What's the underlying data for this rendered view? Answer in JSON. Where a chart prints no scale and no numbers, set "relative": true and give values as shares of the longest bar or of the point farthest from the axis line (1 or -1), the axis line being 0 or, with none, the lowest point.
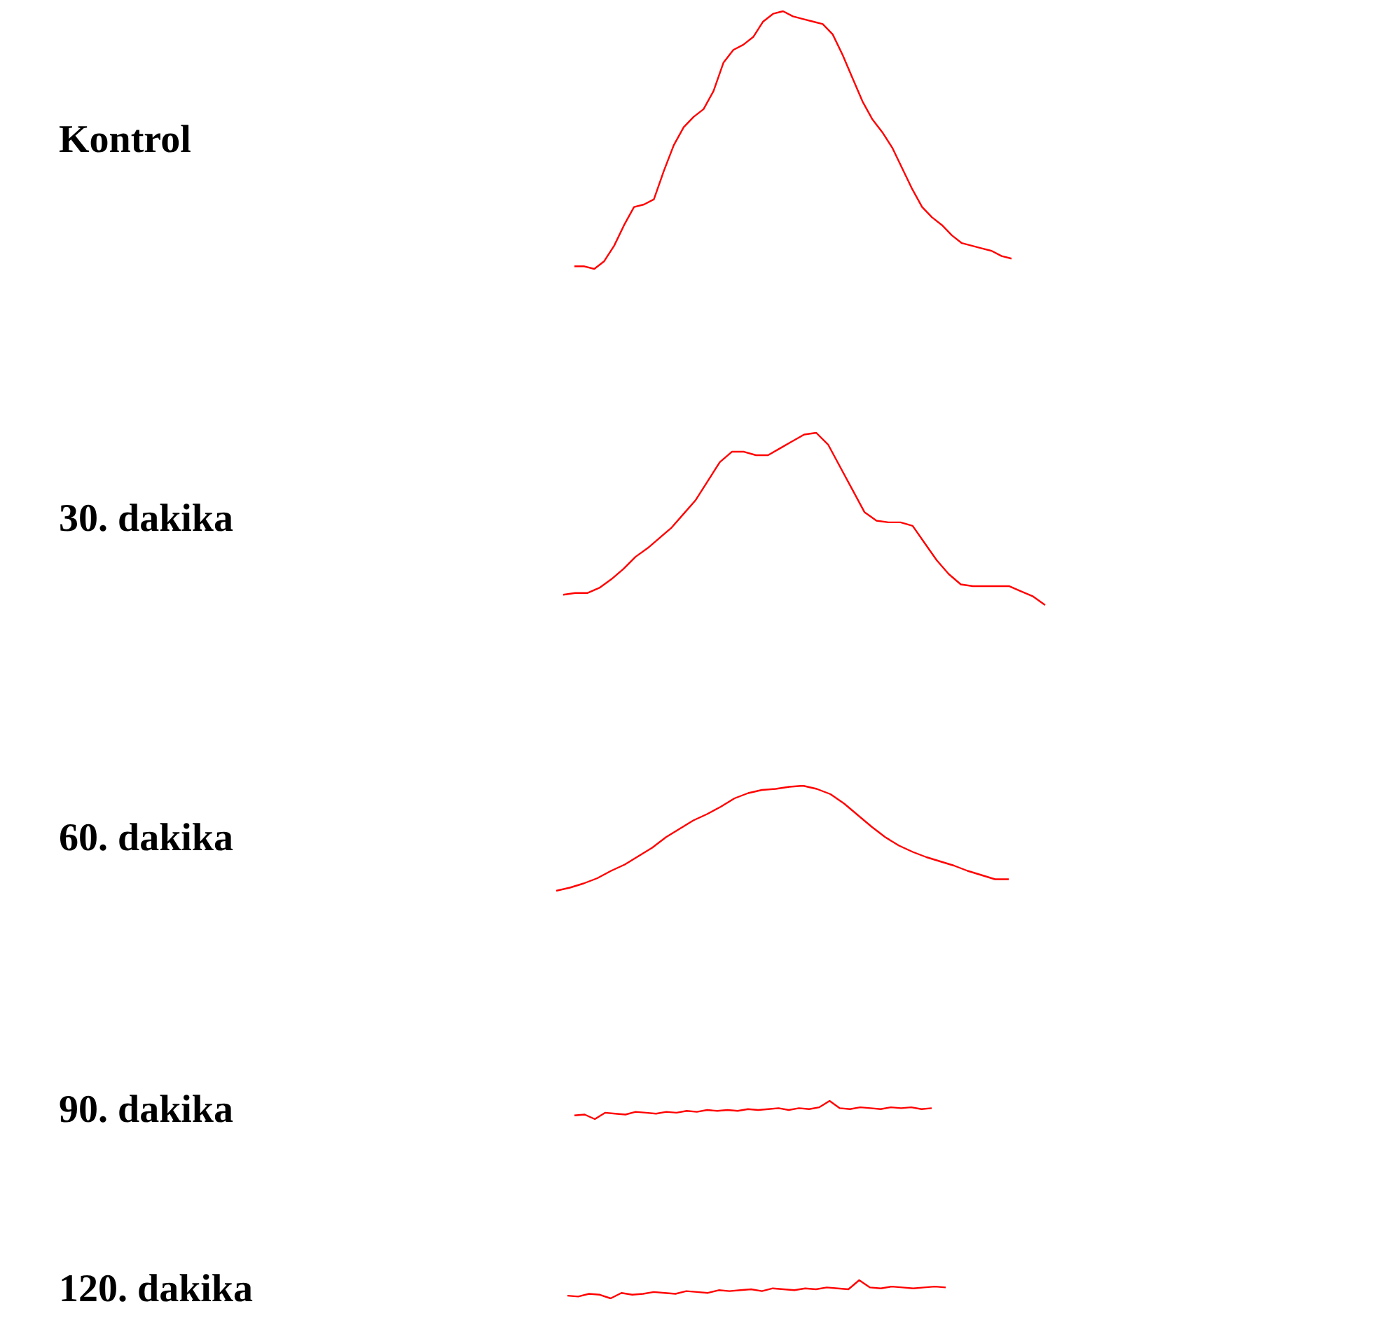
{
  "chart_data": [
    {
      "type": "line",
      "ylabel": "Kontrol",
      "relative": true,
      "categories": [
        null,
        null,
        null,
        null,
        null,
        null,
        null,
        null,
        null,
        null,
        null,
        null,
        null,
        null,
        null,
        null,
        null,
        null,
        null,
        null,
        null,
        null,
        null,
        null,
        null,
        null,
        null,
        null,
        null,
        null,
        null,
        null,
        null,
        null,
        null,
        null,
        null,
        null,
        null,
        null,
        null,
        null,
        null,
        null,
        null
      ],
      "series": [
        {
          "color": "#ff0000",
          "values": [
            0.01,
            0.01,
            0,
            0.03,
            0.09,
            0.17,
            0.24,
            0.25,
            0.27,
            0.38,
            0.48,
            0.55,
            0.59,
            0.62,
            0.69,
            0.8,
            0.85,
            0.87,
            0.9,
            0.96,
            0.99,
            1,
            0.98,
            0.97,
            0.96,
            0.95,
            0.91,
            0.83,
            0.74,
            0.65,
            0.58,
            0.53,
            0.47,
            0.39,
            0.31,
            0.24,
            0.2,
            0.17,
            0.13,
            0.1,
            0.09,
            0.08,
            0.07,
            0.05,
            0.04
          ]
        }
      ]
    },
    {
      "type": "line",
      "ylabel": "30. dakika",
      "relative": true,
      "categories": [
        null,
        null,
        null,
        null,
        null,
        null,
        null,
        null,
        null,
        null,
        null,
        null,
        null,
        null,
        null,
        null,
        null,
        null,
        null,
        null,
        null,
        null,
        null,
        null,
        null,
        null,
        null,
        null,
        null,
        null,
        null,
        null,
        null,
        null,
        null,
        null,
        null,
        null,
        null,
        null,
        null
      ],
      "series": [
        {
          "color": "#ff0000",
          "values": [
            0.06,
            0.07,
            0.07,
            0.1,
            0.15,
            0.21,
            0.28,
            0.33,
            0.39,
            0.45,
            0.53,
            0.61,
            0.72,
            0.83,
            0.89,
            0.89,
            0.87,
            0.87,
            0.91,
            0.95,
            0.99,
            1,
            0.93,
            0.8,
            0.67,
            0.54,
            0.49,
            0.48,
            0.48,
            0.46,
            0.36,
            0.26,
            0.18,
            0.12,
            0.11,
            0.11,
            0.11,
            0.11,
            0.08,
            0.05,
            0
          ]
        }
      ]
    },
    {
      "type": "line",
      "ylabel": "60. dakika",
      "relative": true,
      "categories": [
        null,
        null,
        null,
        null,
        null,
        null,
        null,
        null,
        null,
        null,
        null,
        null,
        null,
        null,
        null,
        null,
        null,
        null,
        null,
        null,
        null,
        null,
        null,
        null,
        null,
        null,
        null,
        null,
        null,
        null,
        null,
        null,
        null,
        null
      ],
      "series": [
        {
          "color": "#ff0000",
          "values": [
            0,
            0.03,
            0.07,
            0.12,
            0.19,
            0.25,
            0.33,
            0.41,
            0.51,
            0.59,
            0.67,
            0.73,
            0.8,
            0.88,
            0.93,
            0.96,
            0.97,
            0.99,
            1,
            0.97,
            0.92,
            0.83,
            0.72,
            0.61,
            0.51,
            0.43,
            0.37,
            0.32,
            0.28,
            0.24,
            0.19,
            0.15,
            0.11,
            0.11
          ]
        }
      ]
    },
    {
      "type": "line",
      "ylabel": "90. dakika",
      "relative": true,
      "categories": [
        null,
        null,
        null,
        null,
        null,
        null,
        null,
        null,
        null,
        null,
        null,
        null,
        null,
        null,
        null,
        null,
        null,
        null,
        null,
        null,
        null,
        null,
        null,
        null,
        null,
        null,
        null,
        null,
        null,
        null,
        null,
        null,
        null,
        null,
        null,
        null
      ],
      "series": [
        {
          "color": "#ff0000",
          "values": [
            0.2,
            0.25,
            0,
            0.35,
            0.3,
            0.25,
            0.4,
            0.35,
            0.3,
            0.4,
            0.35,
            0.45,
            0.4,
            0.5,
            0.45,
            0.5,
            0.45,
            0.55,
            0.5,
            0.55,
            0.6,
            0.5,
            0.6,
            0.55,
            0.65,
            1,
            0.6,
            0.55,
            0.65,
            0.6,
            0.55,
            0.65,
            0.6,
            0.65,
            0.55,
            0.6
          ]
        }
      ]
    },
    {
      "type": "line",
      "ylabel": "120. dakika",
      "relative": true,
      "categories": [
        null,
        null,
        null,
        null,
        null,
        null,
        null,
        null,
        null,
        null,
        null,
        null,
        null,
        null,
        null,
        null,
        null,
        null,
        null,
        null,
        null,
        null,
        null,
        null,
        null,
        null,
        null,
        null,
        null,
        null,
        null,
        null,
        null,
        null,
        null,
        null
      ],
      "series": [
        {
          "color": "#ff0000",
          "values": [
            0.15,
            0.1,
            0.25,
            0.2,
            0,
            0.3,
            0.2,
            0.25,
            0.35,
            0.3,
            0.25,
            0.4,
            0.35,
            0.3,
            0.45,
            0.4,
            0.45,
            0.5,
            0.4,
            0.55,
            0.5,
            0.45,
            0.55,
            0.5,
            0.6,
            0.55,
            0.5,
            1,
            0.6,
            0.55,
            0.65,
            0.6,
            0.55,
            0.6,
            0.65,
            0.6
          ]
        }
      ]
    }
  ]
}
